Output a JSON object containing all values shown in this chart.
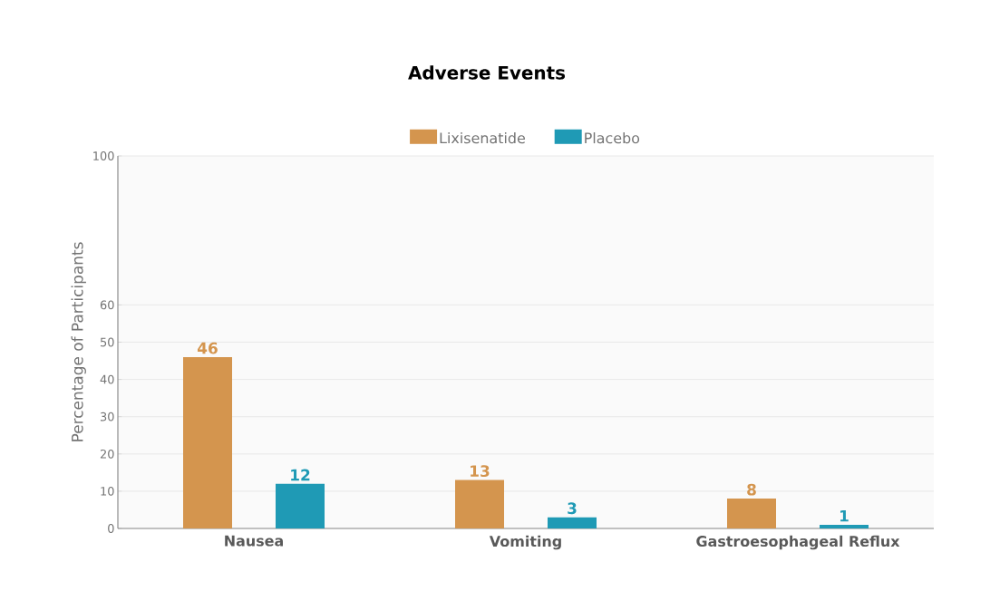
{
  "chart_data": {
    "type": "bar",
    "title": "Adverse Events",
    "ylabel": "Percentage of Participants",
    "categories": [
      "Nausea",
      "Vomiting",
      "Gastroesophageal Reflux"
    ],
    "series": [
      {
        "name": "Lixisenatide",
        "color": "#d4954e",
        "values": [
          46,
          13,
          8
        ]
      },
      {
        "name": "Placebo",
        "color": "#1f9ab5",
        "values": [
          12,
          3,
          1
        ]
      }
    ],
    "ylim": [
      0,
      100
    ],
    "yticks": [
      0,
      10,
      20,
      30,
      40,
      50,
      60,
      100
    ],
    "grid": "y",
    "legend": "top",
    "data_labels": true
  }
}
